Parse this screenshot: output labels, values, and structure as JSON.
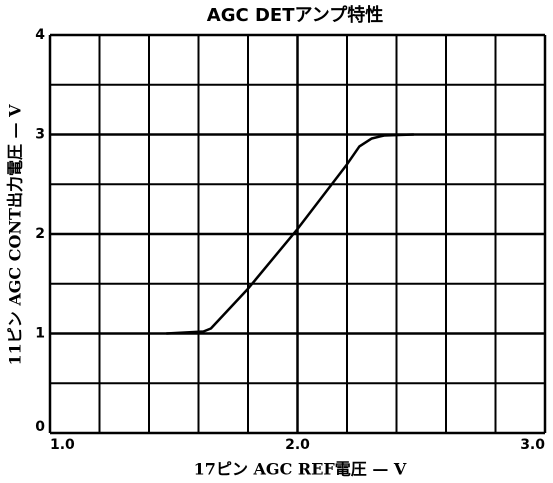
{
  "chart_data": {
    "type": "line",
    "title": "AGC DETアンプ特性",
    "xlabel": "17ピン AGC REF電圧 — V",
    "ylabel": "11ピン AGC CONT出力電圧 — V",
    "x": [
      1.47,
      1.62,
      1.65,
      1.8,
      2.0,
      2.2,
      2.25,
      2.3,
      2.35,
      2.47
    ],
    "series": [
      {
        "color": "#000000",
        "values": [
          1.0,
          1.02,
          1.05,
          1.45,
          2.05,
          2.7,
          2.88,
          2.96,
          2.99,
          3.0
        ]
      }
    ],
    "xlim": [
      1.0,
      3.0
    ],
    "ylim": [
      0,
      4
    ],
    "xticks": [
      {
        "value": 1.0,
        "label": "1.0"
      },
      {
        "value": 2.0,
        "label": "2.0"
      },
      {
        "value": 3.0,
        "label": "3.0"
      }
    ],
    "yticks": [
      0,
      1,
      2,
      3,
      4
    ],
    "xgrid": [
      1.2,
      1.4,
      1.6,
      1.8,
      2.2,
      2.4,
      2.6,
      2.8
    ],
    "ygrid": [
      0.5,
      1.5,
      2.5,
      3.5
    ],
    "grid": true
  }
}
